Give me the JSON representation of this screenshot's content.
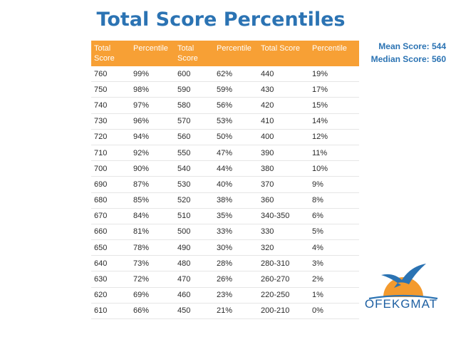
{
  "title": "Total Score Percentiles",
  "header": {
    "score": "Total Score",
    "percentile": "Percentile"
  },
  "stats": {
    "mean": "Mean Score: 544",
    "median": "Median Score: 560"
  },
  "brand": {
    "name": "OFEKGMAT",
    "primary_color": "#2b73b3",
    "header_color": "#f7a035"
  },
  "tables": [
    {
      "rows": [
        {
          "score": "760",
          "percentile": "99%"
        },
        {
          "score": "750",
          "percentile": "98%"
        },
        {
          "score": "740",
          "percentile": "97%"
        },
        {
          "score": "730",
          "percentile": "96%"
        },
        {
          "score": "720",
          "percentile": "94%"
        },
        {
          "score": "710",
          "percentile": "92%"
        },
        {
          "score": "700",
          "percentile": "90%"
        },
        {
          "score": "690",
          "percentile": "87%"
        },
        {
          "score": "680",
          "percentile": "85%"
        },
        {
          "score": "670",
          "percentile": "84%"
        },
        {
          "score": "660",
          "percentile": "81%"
        },
        {
          "score": "650",
          "percentile": "78%"
        },
        {
          "score": "640",
          "percentile": "73%"
        },
        {
          "score": "630",
          "percentile": "72%"
        },
        {
          "score": "620",
          "percentile": "69%"
        },
        {
          "score": "610",
          "percentile": "66%"
        }
      ]
    },
    {
      "rows": [
        {
          "score": "600",
          "percentile": "62%"
        },
        {
          "score": "590",
          "percentile": "59%"
        },
        {
          "score": "580",
          "percentile": "56%"
        },
        {
          "score": "570",
          "percentile": "53%"
        },
        {
          "score": "560",
          "percentile": "50%"
        },
        {
          "score": "550",
          "percentile": "47%"
        },
        {
          "score": "540",
          "percentile": "44%"
        },
        {
          "score": "530",
          "percentile": "40%"
        },
        {
          "score": "520",
          "percentile": "38%"
        },
        {
          "score": "510",
          "percentile": "35%"
        },
        {
          "score": "500",
          "percentile": "33%"
        },
        {
          "score": "490",
          "percentile": "30%"
        },
        {
          "score": "480",
          "percentile": "28%"
        },
        {
          "score": "470",
          "percentile": "26%"
        },
        {
          "score": "460",
          "percentile": "23%"
        },
        {
          "score": "450",
          "percentile": "21%"
        }
      ]
    },
    {
      "rows": [
        {
          "score": "440",
          "percentile": "19%"
        },
        {
          "score": "430",
          "percentile": "17%"
        },
        {
          "score": "420",
          "percentile": "15%"
        },
        {
          "score": "410",
          "percentile": "14%"
        },
        {
          "score": "400",
          "percentile": "12%"
        },
        {
          "score": "390",
          "percentile": "11%"
        },
        {
          "score": "380",
          "percentile": "10%"
        },
        {
          "score": "370",
          "percentile": "9%"
        },
        {
          "score": "360",
          "percentile": "8%"
        },
        {
          "score": "340-350",
          "percentile": "6%"
        },
        {
          "score": "330",
          "percentile": "5%"
        },
        {
          "score": "320",
          "percentile": "4%"
        },
        {
          "score": "280-310",
          "percentile": "3%"
        },
        {
          "score": "260-270",
          "percentile": "2%"
        },
        {
          "score": "220-250",
          "percentile": "1%"
        },
        {
          "score": "200-210",
          "percentile": "0%"
        }
      ]
    }
  ]
}
